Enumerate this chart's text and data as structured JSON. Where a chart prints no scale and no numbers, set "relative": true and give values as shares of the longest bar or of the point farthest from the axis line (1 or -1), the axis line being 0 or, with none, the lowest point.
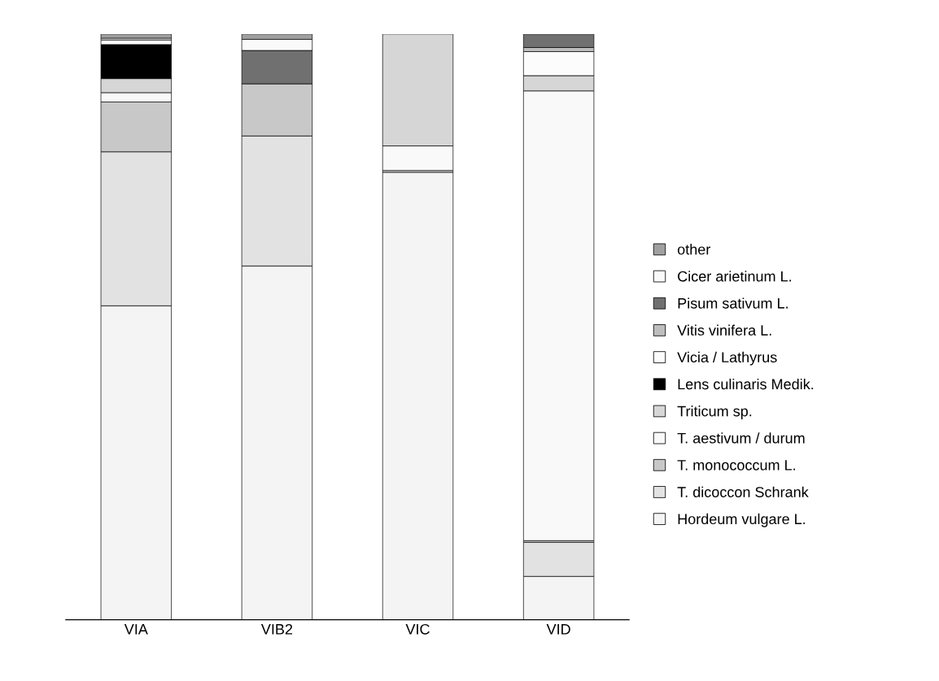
{
  "chart_data": {
    "type": "bar",
    "stacked": true,
    "relative": true,
    "legend": "right",
    "grid": false,
    "categories": [
      "VIA",
      "VIB2",
      "VIC",
      "VID"
    ],
    "series": [
      {
        "name": "Hordeum vulgare L.",
        "color": "#f4f4f4",
        "values": [
          0.536,
          0.604,
          0.764,
          0.074
        ]
      },
      {
        "name": "T. dicoccon Schrank",
        "color": "#e2e2e2",
        "values": [
          0.263,
          0.222,
          0.003,
          0.058
        ]
      },
      {
        "name": "T. monococcum L.",
        "color": "#c8c8c8",
        "values": [
          0.085,
          0.089,
          0,
          0.003
        ]
      },
      {
        "name": "T. aestivum / durum",
        "color": "#f9f9f9",
        "values": [
          0.016,
          0,
          0.042,
          0.768
        ]
      },
      {
        "name": "Triticum sp.",
        "color": "#d6d6d6",
        "values": [
          0.024,
          0,
          0.191,
          0.026
        ]
      },
      {
        "name": "Lens culinaris Medik.",
        "color": "#000000",
        "values": [
          0.058,
          0,
          0,
          0
        ]
      },
      {
        "name": "Vicia / Lathyrus",
        "color": "#fcfcfc",
        "values": [
          0.008,
          0,
          0,
          0.041
        ]
      },
      {
        "name": "Vitis vinifera L.",
        "color": "#bdbdbd",
        "values": [
          0,
          0,
          0,
          0.007
        ]
      },
      {
        "name": "Pisum sativum L.",
        "color": "#707070",
        "values": [
          0,
          0.057,
          0,
          0.023
        ]
      },
      {
        "name": "Cicer arietinum L.",
        "color": "#fafafa",
        "values": [
          0.003,
          0.019,
          0,
          0
        ]
      },
      {
        "name": "other",
        "color": "#a0a0a0",
        "values": [
          0.007,
          0.009,
          0,
          0
        ]
      }
    ]
  }
}
